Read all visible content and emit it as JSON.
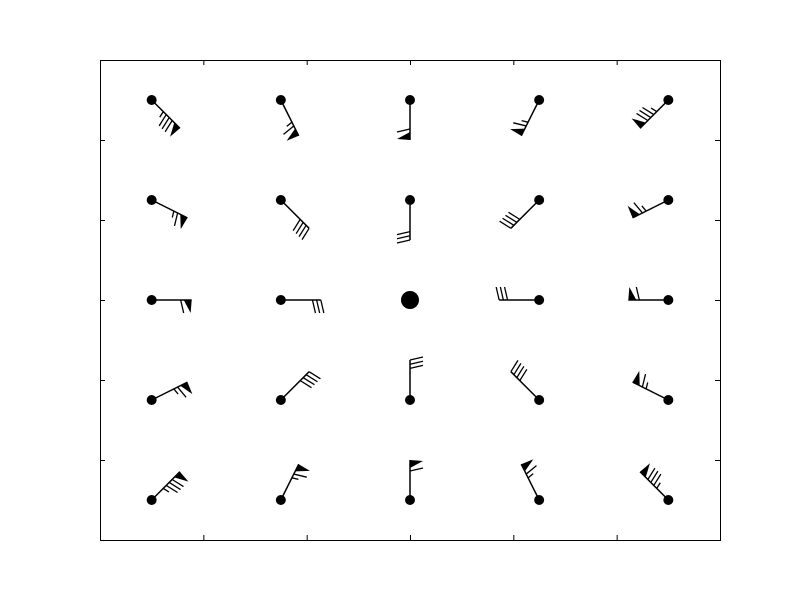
{
  "chart_data": {
    "type": "barbs",
    "color": "#000000",
    "x": [
      -5,
      -2.5,
      0,
      2.5,
      5,
      -5,
      -2.5,
      0,
      2.5,
      5,
      -5,
      -2.5,
      0,
      2.5,
      5,
      -5,
      -2.5,
      0,
      2.5,
      5,
      -5,
      -2.5,
      0,
      2.5,
      5
    ],
    "y": [
      -5,
      -5,
      -5,
      -5,
      -5,
      -2.5,
      -2.5,
      -2.5,
      -2.5,
      -2.5,
      0,
      0,
      0,
      0,
      0,
      2.5,
      2.5,
      2.5,
      2.5,
      2.5,
      5,
      5,
      5,
      5,
      5
    ],
    "u": [
      -60,
      -30,
      0,
      30,
      60,
      -60,
      -30,
      0,
      30,
      60,
      -60,
      -30,
      0,
      30,
      60,
      -60,
      -30,
      0,
      30,
      60,
      -60,
      -30,
      0,
      30,
      60
    ],
    "v": [
      -60,
      -60,
      -60,
      -60,
      -60,
      -30,
      -30,
      -30,
      -30,
      -30,
      0,
      0,
      0,
      0,
      0,
      30,
      30,
      30,
      30,
      30,
      60,
      60,
      60,
      60,
      60
    ],
    "xlim": [
      -6,
      6
    ],
    "ylim": [
      -6,
      6
    ],
    "xticks": [
      -4,
      -2,
      0,
      2,
      4
    ],
    "yticks": [
      -4,
      -2,
      0,
      2,
      4
    ]
  }
}
